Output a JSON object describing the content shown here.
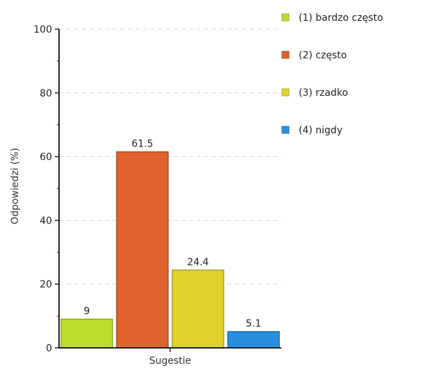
{
  "chart_data": {
    "type": "bar",
    "categories": [
      "(1) bardzo często",
      "(2) często",
      "(3) rzadko",
      "(4) nigdy"
    ],
    "values": [
      9,
      61.5,
      24.4,
      5.1
    ],
    "value_labels": [
      "9",
      "61.5",
      "24.4",
      "5.1"
    ],
    "colors": [
      "#bddd2d",
      "#e0622d",
      "#e1d22b",
      "#2a8ede"
    ],
    "xlabel": "Sugestie",
    "ylabel": "Odpowiedzi (%)",
    "ylim": [
      0,
      100
    ],
    "yticks": [
      0,
      20,
      40,
      60,
      80,
      100
    ],
    "grid": "dashed horizontal",
    "legend": {
      "position": "top-right",
      "items": [
        "(1) bardzo często",
        "(2) często",
        "(3) rzadko",
        "(4) nigdy"
      ]
    }
  }
}
